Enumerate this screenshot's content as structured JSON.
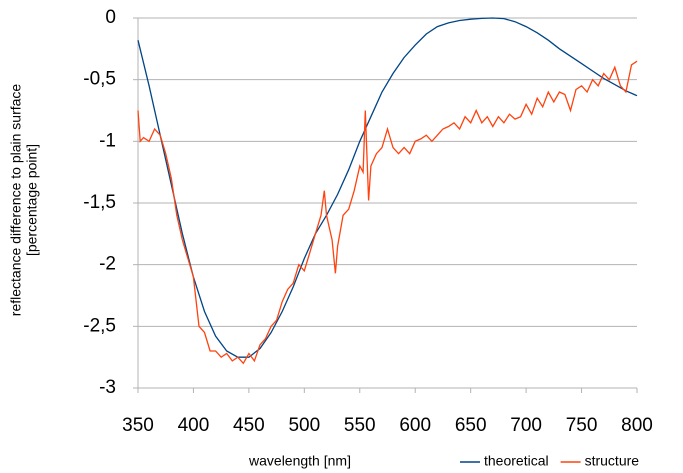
{
  "chart_data": {
    "type": "line",
    "xlabel": "wavelength [nm]",
    "ylabel": [
      "reflectance difference to plain surface",
      "[percentage point]"
    ],
    "xlim": [
      350,
      800
    ],
    "xticks": [
      350,
      400,
      450,
      500,
      550,
      600,
      650,
      700,
      750,
      800
    ],
    "ylim": [
      -3,
      0
    ],
    "yticks": [
      {
        "value": -3,
        "label": "-3"
      },
      {
        "value": -2.5,
        "label": "-2,5"
      },
      {
        "value": -2,
        "label": "-2"
      },
      {
        "value": -1.5,
        "label": "-1,5"
      },
      {
        "value": -1,
        "label": "-1"
      },
      {
        "value": -0.5,
        "label": "-0,5"
      },
      {
        "value": 0,
        "label": "0"
      }
    ],
    "grid": true,
    "legend": "bottom-right",
    "series": [
      {
        "name": "theoretical",
        "color": "#004586",
        "x": [
          350,
          360,
          370,
          380,
          390,
          400,
          410,
          420,
          430,
          440,
          450,
          460,
          470,
          480,
          490,
          500,
          510,
          520,
          530,
          540,
          550,
          560,
          570,
          580,
          590,
          600,
          610,
          620,
          630,
          640,
          650,
          660,
          670,
          680,
          690,
          700,
          710,
          720,
          730,
          740,
          750,
          760,
          770,
          780,
          790,
          800
        ],
        "values": [
          -0.18,
          -0.55,
          -0.95,
          -1.35,
          -1.75,
          -2.1,
          -2.38,
          -2.58,
          -2.7,
          -2.75,
          -2.75,
          -2.68,
          -2.55,
          -2.38,
          -2.18,
          -1.95,
          -1.75,
          -1.6,
          -1.43,
          -1.23,
          -1.0,
          -0.8,
          -0.6,
          -0.45,
          -0.32,
          -0.22,
          -0.13,
          -0.07,
          -0.04,
          -0.02,
          -0.01,
          -0.003,
          0,
          -0.005,
          -0.03,
          -0.07,
          -0.12,
          -0.18,
          -0.25,
          -0.31,
          -0.37,
          -0.43,
          -0.49,
          -0.54,
          -0.59,
          -0.63
        ]
      },
      {
        "name": "structure",
        "color": "#ff420e",
        "x": [
          350,
          352,
          355,
          360,
          365,
          370,
          375,
          380,
          385,
          390,
          395,
          400,
          405,
          410,
          415,
          420,
          425,
          430,
          435,
          440,
          445,
          450,
          455,
          460,
          465,
          470,
          475,
          480,
          485,
          490,
          495,
          500,
          505,
          510,
          515,
          518,
          520,
          525,
          528,
          530,
          535,
          540,
          545,
          550,
          553,
          555,
          558,
          560,
          565,
          570,
          575,
          580,
          585,
          590,
          595,
          600,
          605,
          610,
          615,
          620,
          625,
          630,
          635,
          640,
          645,
          650,
          655,
          660,
          665,
          670,
          675,
          680,
          685,
          690,
          695,
          700,
          705,
          710,
          715,
          720,
          725,
          730,
          735,
          740,
          745,
          750,
          755,
          760,
          765,
          770,
          775,
          780,
          785,
          790,
          795,
          800
        ],
        "values": [
          -0.75,
          -1.0,
          -0.97,
          -1.0,
          -0.9,
          -0.95,
          -1.1,
          -1.3,
          -1.6,
          -1.8,
          -1.95,
          -2.1,
          -2.5,
          -2.55,
          -2.7,
          -2.7,
          -2.75,
          -2.72,
          -2.78,
          -2.75,
          -2.8,
          -2.72,
          -2.78,
          -2.65,
          -2.6,
          -2.5,
          -2.45,
          -2.3,
          -2.2,
          -2.15,
          -2.0,
          -2.05,
          -1.9,
          -1.75,
          -1.6,
          -1.4,
          -1.6,
          -1.8,
          -2.07,
          -1.85,
          -1.6,
          -1.55,
          -1.4,
          -1.2,
          -1.25,
          -0.75,
          -1.48,
          -1.2,
          -1.1,
          -1.05,
          -0.9,
          -1.05,
          -1.1,
          -1.05,
          -1.1,
          -1.0,
          -0.98,
          -0.95,
          -1.0,
          -0.95,
          -0.9,
          -0.88,
          -0.85,
          -0.9,
          -0.8,
          -0.85,
          -0.75,
          -0.85,
          -0.8,
          -0.88,
          -0.8,
          -0.85,
          -0.78,
          -0.82,
          -0.8,
          -0.7,
          -0.78,
          -0.65,
          -0.72,
          -0.6,
          -0.68,
          -0.6,
          -0.62,
          -0.75,
          -0.58,
          -0.55,
          -0.6,
          -0.5,
          -0.55,
          -0.45,
          -0.5,
          -0.4,
          -0.55,
          -0.6,
          -0.38,
          -0.35
        ]
      }
    ]
  }
}
